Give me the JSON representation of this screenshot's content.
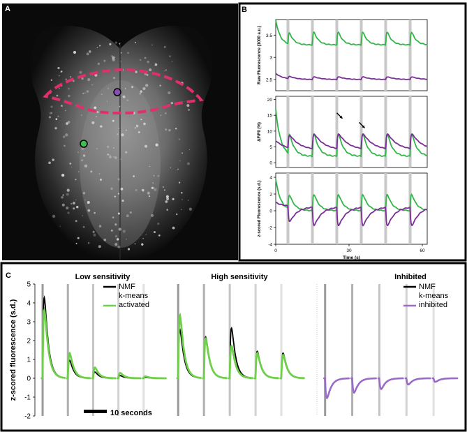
{
  "panels": {
    "a_label": "A",
    "b_label": "B",
    "c_label": "C"
  },
  "colors": {
    "green": "#33b54a",
    "purple": "#7a2e96",
    "black": "#000000",
    "light_green": "#6fcf4a",
    "light_purple": "#9a6bc9",
    "roi_outline": "#e0306a",
    "stim_bar": "#c8c8c8"
  },
  "panel_a": {
    "image": "fluorescence-micrograph-brain",
    "roi": "dashed-outline-region",
    "markers": [
      "purple-circle-marker",
      "green-circle-marker"
    ]
  },
  "chart_data": [
    {
      "type": "line",
      "id": "b1",
      "ylabel": "Raw Fluorescence (1000 a.u.)",
      "ylim": [
        2.25,
        3.85
      ],
      "yticks": [
        "2.5",
        "3",
        "3.5"
      ],
      "yticks_values": [
        2.5,
        3.0,
        3.5
      ],
      "xlim": [
        0,
        62
      ],
      "stim_times": [
        5,
        15,
        25,
        35,
        45,
        55
      ],
      "series": [
        {
          "name": "green",
          "baseline": 3.28,
          "peak_offset": 0.45,
          "start": 3.85,
          "decay": 1.8
        },
        {
          "name": "purple",
          "baseline": 2.5,
          "peak_offset": 0.08,
          "start": 2.64,
          "decay": 3.0
        }
      ]
    },
    {
      "type": "line",
      "id": "b2",
      "ylabel": "ΔF/F0 (%)",
      "ylim": [
        -1.5,
        21
      ],
      "yticks": [
        "0",
        "5",
        "10",
        "15",
        "20"
      ],
      "yticks_values": [
        0,
        5,
        10,
        15,
        20
      ],
      "xlim": [
        0,
        62
      ],
      "stim_times": [
        5,
        15,
        25,
        35,
        45,
        55
      ],
      "annotations": [
        "arrow-1",
        "arrow-2"
      ],
      "series": [
        {
          "name": "green",
          "baseline": 2.0,
          "peak_offset": 11.0,
          "start": 17.0,
          "decay": 2.0
        },
        {
          "name": "purple",
          "baseline": 4.0,
          "peak_offset": 6.0,
          "start": 7.0,
          "decay": 4.0
        }
      ]
    },
    {
      "type": "line",
      "id": "b3",
      "ylabel": "z-scored Fluorescence (s.d.)",
      "xlabel": "Time (s)",
      "ylim": [
        -4,
        4.5
      ],
      "yticks": [
        "-4",
        "-2",
        "0",
        "2",
        "4"
      ],
      "yticks_values": [
        -4,
        -2,
        0,
        2,
        4
      ],
      "xlim": [
        0,
        62
      ],
      "xticks": [
        "0",
        "30",
        "60"
      ],
      "xticks_values": [
        0,
        30,
        60
      ],
      "stim_times": [
        5,
        15,
        25,
        35,
        45,
        55
      ],
      "series": [
        {
          "name": "green",
          "baseline": 0.0,
          "peak_offset": 3.0,
          "start": 3.8,
          "decay": 2.0
        },
        {
          "name": "purple",
          "baseline": 0.5,
          "peak_offset": -3.0,
          "start": 1.0,
          "decay": 3.0
        }
      ]
    },
    {
      "type": "line",
      "id": "c",
      "ylabel": "z-scored fluorescence (s.d.)",
      "ylim": [
        -2,
        5
      ],
      "yticks": [
        "-2",
        "-1",
        "0",
        "1",
        "2",
        "3",
        "4",
        "5"
      ],
      "yticks_values": [
        -2,
        -1,
        0,
        1,
        2,
        3,
        4,
        5
      ],
      "scale_bar": "10 seconds",
      "subpanels": [
        {
          "title": "Low sensitivity",
          "legend": [
            "NMF",
            "k-means activated"
          ],
          "legend_lines": [
            "NMF",
            "k-means",
            "activated"
          ],
          "stim_times": [
            2,
            10,
            18,
            26,
            34
          ],
          "series": [
            {
              "name": "NMF",
              "peaks": [
                4.5,
                1.0,
                0.35,
                0.15,
                0.05
              ]
            },
            {
              "name": "k-means activated",
              "peaks": [
                3.8,
                1.4,
                0.6,
                0.3,
                0.1
              ]
            }
          ]
        },
        {
          "title": "High sensitivity",
          "legend": [],
          "stim_times": [
            2,
            10,
            18,
            26,
            34
          ],
          "series": [
            {
              "name": "NMF",
              "peaks": [
                2.7,
                2.3,
                2.8,
                1.5,
                1.4
              ]
            },
            {
              "name": "k-means activated",
              "peaks": [
                3.5,
                2.2,
                1.8,
                1.4,
                1.3
              ]
            }
          ]
        },
        {
          "title": "Inhibited",
          "legend": [
            "NMF",
            "k-means inhibited"
          ],
          "legend_lines": [
            "NMF",
            "k-means",
            "inhibited"
          ],
          "stim_times": [
            2,
            10,
            18,
            26,
            34
          ],
          "series": [
            {
              "name": "k-means inhibited",
              "peaks": [
                -1.1,
                -0.8,
                -0.6,
                -0.35,
                -0.2
              ]
            }
          ]
        }
      ]
    }
  ]
}
